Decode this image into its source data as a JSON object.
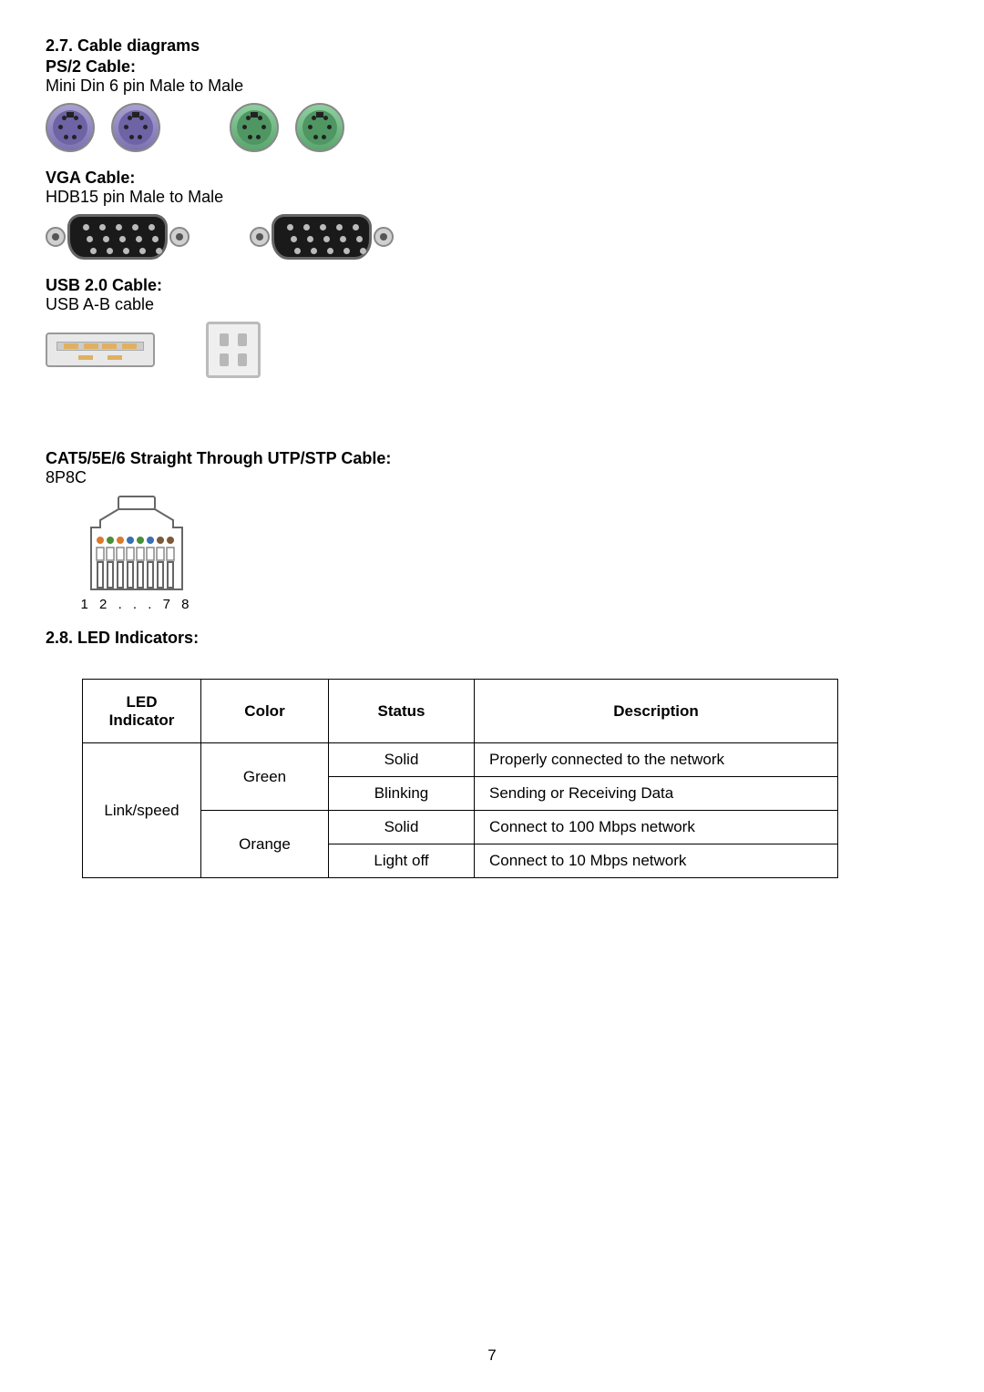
{
  "section27": {
    "number": "2.7.",
    "title": "Cable diagrams",
    "cables": {
      "ps2": {
        "heading": "PS/2 Cable:",
        "desc": "Mini Din 6 pin Male to Male"
      },
      "vga": {
        "heading": "VGA Cable:",
        "desc": "HDB15 pin Male to Male"
      },
      "usb": {
        "heading": "USB 2.0 Cable:",
        "desc": "USB A-B cable"
      },
      "cat5": {
        "heading": "CAT5/5E/6 Straight Through UTP/STP Cable:",
        "desc": "8P8C",
        "pins_label": "1 2 . . . 7 8"
      }
    }
  },
  "section28": {
    "number": "2.8.",
    "title": "LED Indicators:"
  },
  "led_table": {
    "headers": {
      "indicator": "LED Indicator",
      "color": "Color",
      "status": "Status",
      "description": "Description"
    },
    "rows": [
      {
        "indicator": "Link/speed",
        "color": "Green",
        "status": "Solid",
        "description": "Properly connected to the network"
      },
      {
        "indicator": "",
        "color": "",
        "status": "Blinking",
        "description": "Sending or Receiving Data"
      },
      {
        "indicator": "",
        "color": "Orange",
        "status": "Solid",
        "description": "Connect to 100 Mbps network"
      },
      {
        "indicator": "",
        "color": "",
        "status": "Light off",
        "description": "Connect to 10 Mbps network"
      }
    ]
  },
  "rj45_wire_colors": [
    "#d97b2e",
    "#4a8f3a",
    "#d97b2e",
    "#3a6fb5",
    "#4a8f3a",
    "#3a6fb5",
    "#7a5a3a",
    "#7a5a3a"
  ],
  "page_number": "7"
}
